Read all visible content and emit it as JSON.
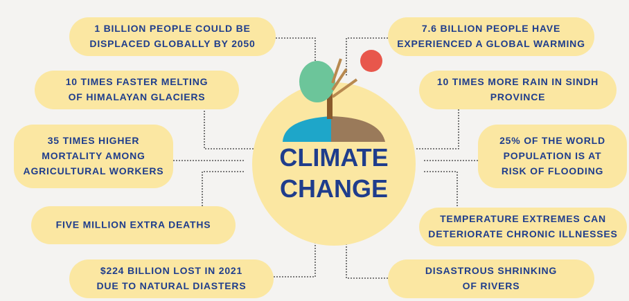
{
  "title": {
    "lines": [
      "CLIMATE",
      "CHANGE"
    ]
  },
  "nodes": [
    {
      "lines": [
        "1 BILLION PEOPLE COULD BE",
        "DISPLACED GLOBALLY BY 2050"
      ]
    },
    {
      "lines": [
        "10 TIMES FASTER MELTING",
        "OF HIMALAYAN GLACIERS"
      ]
    },
    {
      "lines": [
        "35 TIMES HIGHER",
        "MORTALITY AMONG",
        "AGRICULTURAL WORKERS"
      ]
    },
    {
      "lines": [
        "FIVE MILLION EXTRA DEATHS"
      ]
    },
    {
      "lines": [
        "$224 BILLION LOST IN 2021",
        "DUE TO NATURAL DIASTERS"
      ]
    },
    {
      "lines": [
        "7.6 BILLION PEOPLE HAVE",
        "EXPERIENCED A GLOBAL WARMING"
      ]
    },
    {
      "lines": [
        "10 TIMES MORE RAIN IN SINDH",
        "PROVINCE"
      ]
    },
    {
      "lines": [
        "25% OF THE WORLD",
        "POPULATION IS AT",
        "RISK OF FLOODING"
      ]
    },
    {
      "lines": [
        "TEMPERATURE EXTREMES CAN",
        "DETERIORATE CHRONIC ILLNESSES"
      ]
    },
    {
      "lines": [
        "DISASTROUS SHRINKING",
        "OF RIVERS"
      ]
    }
  ]
}
